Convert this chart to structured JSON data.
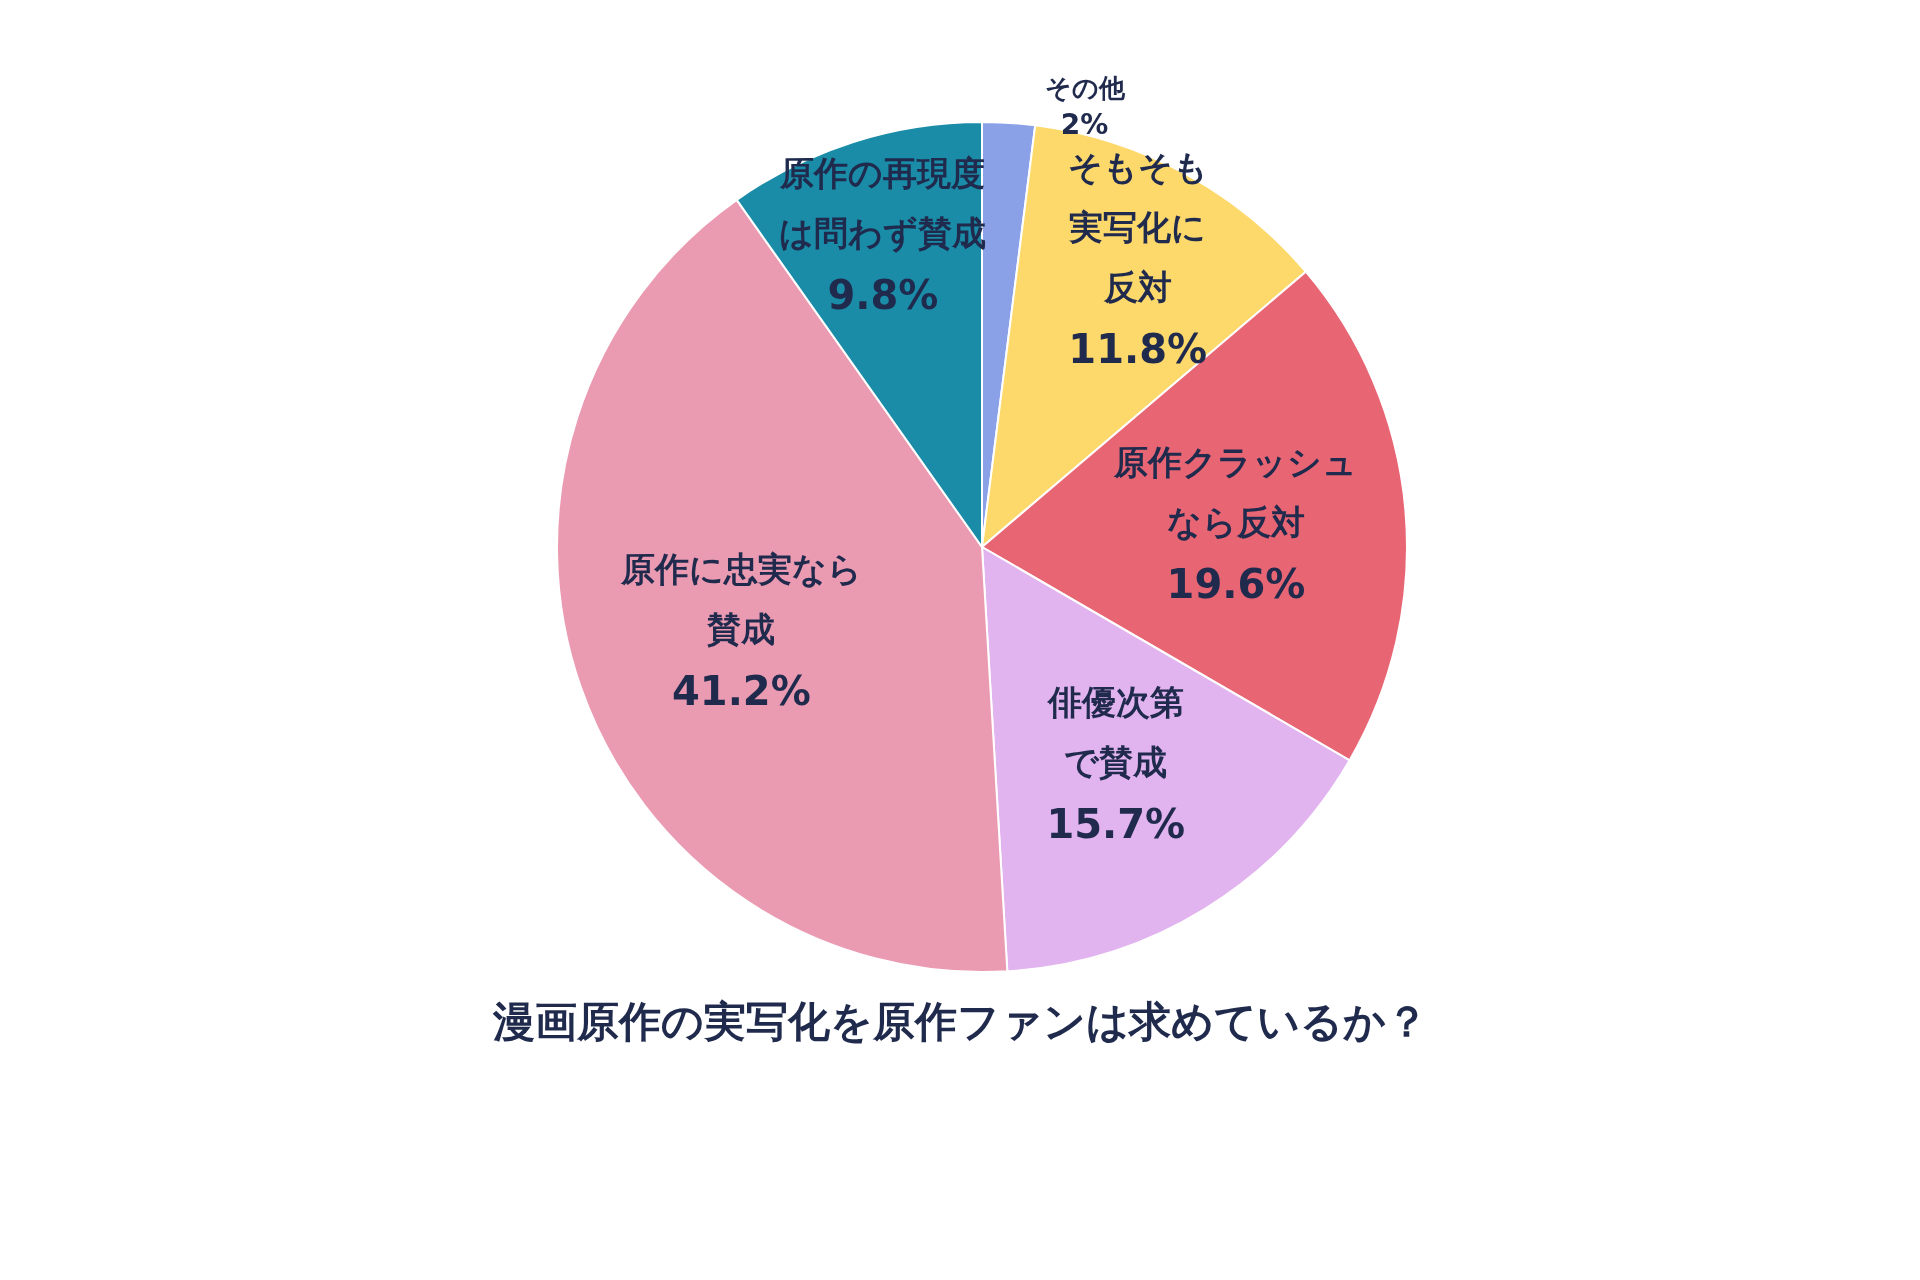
{
  "chart_data": {
    "type": "pie",
    "title": "漫画原作の実写化を原作ファンは求めているか？",
    "categories": [
      "その他",
      "そもそも実写化に反対",
      "原作クラッシュなら反対",
      "俳優次第で賛成",
      "原作に忠実なら賛成",
      "原作の再現度は問わず賛成"
    ],
    "values": [
      2,
      11.8,
      19.6,
      15.7,
      41.2,
      9.8
    ],
    "colors": [
      "#8aa1e8",
      "#fdd96c",
      "#e86674",
      "#e1b3ef",
      "#ea9bb2",
      "#1a8ca8"
    ],
    "value_labels": [
      "2%",
      "11.8%",
      "19.6%",
      "15.7%",
      "41.2%",
      "9.8%"
    ]
  }
}
